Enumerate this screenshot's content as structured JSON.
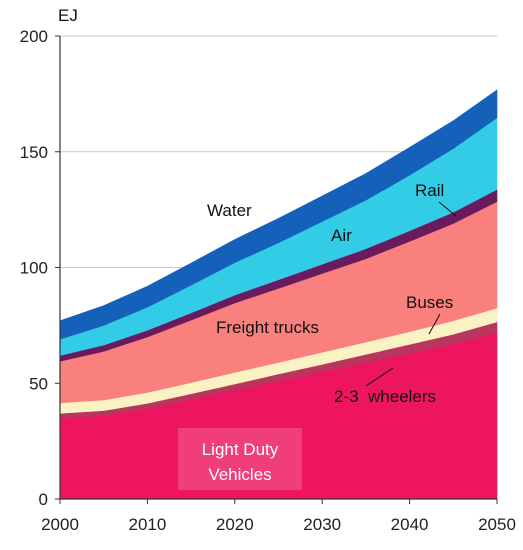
{
  "chart_data": {
    "type": "area",
    "stacked": true,
    "ylabel": "EJ",
    "x": [
      2000,
      2005,
      2010,
      2015,
      2020,
      2025,
      2030,
      2035,
      2040,
      2045,
      2050
    ],
    "xticks": [
      "2000",
      "2010",
      "2020",
      "2030",
      "2040",
      "2050"
    ],
    "yticks": [
      "0",
      "50",
      "100",
      "150",
      "200"
    ],
    "xlim": [
      2000,
      2050
    ],
    "ylim": [
      0,
      200
    ],
    "grid": "horizontal",
    "series": [
      {
        "name": "Light Duty Vehicles",
        "color": "#EE1560",
        "values": [
          35,
          36,
          39,
          43,
          47,
          51,
          55,
          59,
          63,
          67,
          72
        ]
      },
      {
        "name": "2-3 wheelers",
        "color": "#B8365E",
        "values": [
          2,
          2.2,
          2.3,
          2.5,
          2.7,
          3,
          3.2,
          3.5,
          3.8,
          4.2,
          4.5
        ]
      },
      {
        "name": "Buses",
        "color": "#FBF2C4",
        "values": [
          4.5,
          4.6,
          4.7,
          4.8,
          5,
          5,
          5.2,
          5.3,
          5.5,
          5.8,
          6
        ]
      },
      {
        "name": "Freight trucks",
        "color": "#F9807C",
        "values": [
          18,
          21,
          24,
          27,
          30,
          32,
          34,
          36,
          39,
          42,
          46
        ]
      },
      {
        "name": "Rail",
        "color": "#6A1A5E",
        "values": [
          2.5,
          2.7,
          2.9,
          3.1,
          3.4,
          3.7,
          4,
          4.3,
          4.6,
          4.9,
          5.2
        ]
      },
      {
        "name": "Air",
        "color": "#33CCE6",
        "values": [
          7,
          8.5,
          10,
          12,
          14,
          16,
          18.5,
          21,
          24,
          27.5,
          31
        ]
      },
      {
        "name": "Water",
        "color": "#1560B8",
        "values": [
          8,
          8.5,
          9,
          9.5,
          10,
          10.5,
          11,
          11.5,
          12,
          12,
          12
        ]
      }
    ],
    "annotations": [
      "Water",
      "Air",
      "Rail",
      "Buses",
      "Freight trucks",
      "2-3  wheelers",
      "Light Duty Vehicles"
    ]
  }
}
